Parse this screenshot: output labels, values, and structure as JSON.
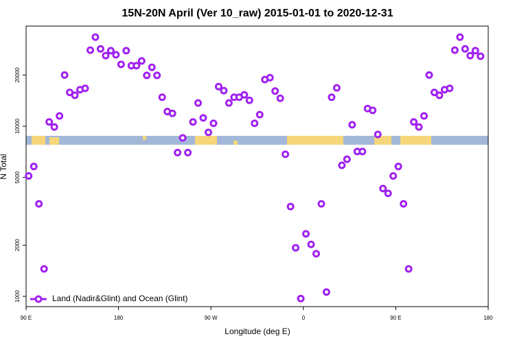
{
  "chart_data": {
    "type": "scatter",
    "title": "15N-20N April (Ver 10_raw)   2015-01-01 to 2020-12-31",
    "x_label": "Longitude (deg E)",
    "y_label": "N Total",
    "xlim": [
      90,
      540
    ],
    "xticks": [
      {
        "value": 90,
        "label": "90 E"
      },
      180,
      {
        "value": 270,
        "label": "90 W"
      },
      {
        "value": 360,
        "label": "0"
      },
      {
        "value": 450,
        "label": "90 E"
      },
      {
        "value": 540,
        "label": "180"
      }
    ],
    "ylim": [
      870,
      38800
    ],
    "y_log": true,
    "yticks": [
      1000,
      2000,
      5000,
      10000,
      20000
    ],
    "legend": "bottom-left",
    "series": [
      {
        "name": "Land (Nadir&Glint) and Ocean (Glint)",
        "color": "#a020f0",
        "x": [
          92.5,
          97.5,
          102.5,
          107.5,
          112.5,
          117.5,
          122.5,
          127.5,
          132.5,
          137.5,
          142.5,
          147.5,
          152.5,
          157.5,
          162.5,
          167.5,
          172.5,
          177.5,
          182.5,
          187.5,
          192.5,
          197.5,
          202.5,
          207.5,
          212.5,
          217.5,
          222.5,
          227.5,
          232.5,
          237.5,
          242.5,
          247.5,
          252.5,
          257.5,
          262.5,
          267.5,
          272.5,
          277.5,
          282.5,
          287.5,
          292.5,
          297.5,
          302.5,
          307.5,
          312.5,
          317.5,
          322.5,
          327.5,
          332.5,
          337.5,
          342.5,
          347.5,
          352.5,
          357.5,
          362.5,
          367.5,
          372.5,
          377.5,
          382.5,
          387.5,
          392.5,
          397.5,
          402.5,
          407.5,
          412.5,
          417.5,
          422.5,
          427.5,
          432.5,
          437.5,
          442.5,
          447.5,
          452.5,
          457.5,
          462.5,
          467.5,
          472.5,
          477.5,
          482.5,
          487.5,
          492.5,
          497.5,
          502.5,
          507.5,
          512.5,
          517.5,
          522.5,
          527.5,
          532.5
        ],
        "values": [
          5100,
          5800,
          3500,
          1450,
          10600,
          9900,
          11500,
          20000,
          15800,
          15200,
          16400,
          16700,
          28000,
          33400,
          28500,
          26000,
          27800,
          26300,
          23100,
          27800,
          22700,
          22700,
          24200,
          19900,
          22200,
          19900,
          14800,
          12200,
          11900,
          7000,
          8540,
          7000,
          10600,
          13700,
          11200,
          9200,
          10400,
          17100,
          16200,
          13700,
          14800,
          14800,
          15300,
          14200,
          10400,
          11700,
          18800,
          19300,
          16100,
          14600,
          6840,
          3370,
          1930,
          970,
          2330,
          2020,
          1780,
          3500,
          1060,
          14800,
          16800,
          5890,
          6400,
          10200,
          7100,
          7100,
          12700,
          12400,
          8950,
          4300,
          4030,
          5100,
          5800,
          3500,
          1450,
          10600,
          9900,
          11500,
          20000,
          15800,
          15200,
          16400,
          16700,
          28000,
          33400,
          28500,
          26000,
          27800,
          25800
        ]
      }
    ]
  }
}
